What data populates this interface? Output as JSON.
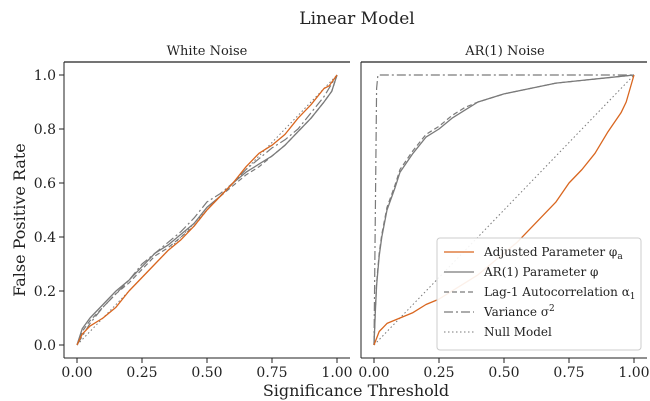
{
  "figure": {
    "title": "Linear Model",
    "xlabel": "Significance Threshold",
    "ylabel": "False Positive Rate"
  },
  "colors": {
    "adjusted": "#d9661f",
    "ar1": "#7a7a7a",
    "lag1": "#7a7a7a",
    "variance": "#7a7a7a",
    "null": "#7a7a7a"
  },
  "legend": {
    "placement": "lower-right of right panel",
    "entries": [
      {
        "key": "adjusted",
        "label": "Adjusted Parameter φ",
        "sub": "a",
        "style": "solid-orange"
      },
      {
        "key": "ar1",
        "label": "AR(1) Parameter φ",
        "sub": "",
        "style": "solid-gray"
      },
      {
        "key": "lag1",
        "label": "Lag-1 Autocorrelation α",
        "sub": "1",
        "style": "dashed"
      },
      {
        "key": "variance",
        "label": "Variance σ",
        "sup": "2",
        "style": "dash-dot"
      },
      {
        "key": "null",
        "label": "Null Model",
        "sub": "",
        "style": "dotted"
      }
    ]
  },
  "chart_data": [
    {
      "type": "line",
      "title": "White Noise",
      "xlim": [
        0,
        1
      ],
      "ylim": [
        0,
        1
      ],
      "xticks": [
        "0.00",
        "0.25",
        "0.50",
        "0.75",
        "1.00"
      ],
      "yticks": [
        "0.0",
        "0.2",
        "0.4",
        "0.6",
        "0.8",
        "1.0"
      ],
      "series": [
        {
          "key": "adjusted",
          "name": "Adjusted Parameter φa",
          "x": [
            0,
            0.02,
            0.05,
            0.1,
            0.15,
            0.2,
            0.25,
            0.3,
            0.35,
            0.4,
            0.45,
            0.5,
            0.55,
            0.6,
            0.65,
            0.7,
            0.75,
            0.8,
            0.85,
            0.9,
            0.95,
            0.97,
            1.0
          ],
          "y": [
            0,
            0.04,
            0.07,
            0.1,
            0.14,
            0.2,
            0.25,
            0.3,
            0.35,
            0.39,
            0.44,
            0.5,
            0.55,
            0.6,
            0.66,
            0.71,
            0.74,
            0.78,
            0.84,
            0.89,
            0.95,
            0.96,
            1.0
          ]
        },
        {
          "key": "ar1",
          "name": "AR(1) Parameter φ",
          "x": [
            0,
            0.02,
            0.05,
            0.1,
            0.15,
            0.2,
            0.25,
            0.3,
            0.35,
            0.4,
            0.45,
            0.5,
            0.55,
            0.6,
            0.65,
            0.7,
            0.75,
            0.8,
            0.85,
            0.9,
            0.95,
            0.98,
            1.0
          ],
          "y": [
            0,
            0.06,
            0.1,
            0.15,
            0.2,
            0.24,
            0.29,
            0.34,
            0.37,
            0.41,
            0.45,
            0.51,
            0.55,
            0.6,
            0.64,
            0.67,
            0.7,
            0.74,
            0.79,
            0.84,
            0.9,
            0.94,
            1.0
          ]
        },
        {
          "key": "lag1",
          "name": "Lag-1 Autocorrelation α1",
          "x": [
            0,
            0.02,
            0.05,
            0.1,
            0.15,
            0.2,
            0.25,
            0.3,
            0.35,
            0.4,
            0.45,
            0.5,
            0.55,
            0.6,
            0.65,
            0.7,
            0.75,
            0.8,
            0.85,
            0.9,
            0.95,
            0.98,
            1.0
          ],
          "y": [
            0,
            0.05,
            0.09,
            0.14,
            0.19,
            0.23,
            0.28,
            0.33,
            0.36,
            0.4,
            0.44,
            0.5,
            0.55,
            0.59,
            0.63,
            0.66,
            0.7,
            0.74,
            0.79,
            0.84,
            0.9,
            0.94,
            1.0
          ]
        },
        {
          "key": "variance",
          "name": "Variance σ2",
          "x": [
            0,
            0.05,
            0.1,
            0.15,
            0.2,
            0.25,
            0.3,
            0.35,
            0.4,
            0.45,
            0.5,
            0.55,
            0.6,
            0.65,
            0.7,
            0.75,
            0.8,
            0.85,
            0.9,
            0.95,
            1.0
          ],
          "y": [
            0,
            0.08,
            0.14,
            0.19,
            0.24,
            0.3,
            0.34,
            0.38,
            0.42,
            0.47,
            0.53,
            0.56,
            0.6,
            0.65,
            0.69,
            0.73,
            0.76,
            0.8,
            0.86,
            0.92,
            1.0
          ]
        },
        {
          "key": "null",
          "name": "Null Model",
          "x": [
            0,
            1
          ],
          "y": [
            0,
            1
          ]
        }
      ]
    },
    {
      "type": "line",
      "title": "AR(1) Noise",
      "xlim": [
        0,
        1
      ],
      "ylim": [
        0,
        1
      ],
      "xticks": [
        "0.00",
        "0.25",
        "0.50",
        "0.75",
        "1.00"
      ],
      "yticks": [],
      "series": [
        {
          "key": "adjusted",
          "name": "Adjusted Parameter φa",
          "x": [
            0,
            0.02,
            0.05,
            0.1,
            0.15,
            0.2,
            0.25,
            0.3,
            0.35,
            0.4,
            0.45,
            0.5,
            0.55,
            0.6,
            0.65,
            0.7,
            0.75,
            0.8,
            0.85,
            0.9,
            0.95,
            0.97,
            1.0
          ],
          "y": [
            0,
            0.05,
            0.08,
            0.1,
            0.12,
            0.15,
            0.17,
            0.2,
            0.23,
            0.26,
            0.3,
            0.34,
            0.38,
            0.43,
            0.48,
            0.53,
            0.6,
            0.65,
            0.71,
            0.79,
            0.86,
            0.9,
            1.0
          ]
        },
        {
          "key": "ar1",
          "name": "AR(1) Parameter φ",
          "x": [
            0,
            0.005,
            0.01,
            0.02,
            0.03,
            0.05,
            0.08,
            0.1,
            0.15,
            0.2,
            0.25,
            0.3,
            0.35,
            0.4,
            0.5,
            0.6,
            0.7,
            0.8,
            0.9,
            1.0
          ],
          "y": [
            0,
            0.12,
            0.22,
            0.33,
            0.4,
            0.5,
            0.58,
            0.64,
            0.71,
            0.77,
            0.8,
            0.84,
            0.87,
            0.9,
            0.93,
            0.95,
            0.97,
            0.98,
            0.99,
            1.0
          ]
        },
        {
          "key": "lag1",
          "name": "Lag-1 Autocorrelation α1",
          "x": [
            0,
            0.005,
            0.01,
            0.02,
            0.03,
            0.05,
            0.08,
            0.1,
            0.15,
            0.2,
            0.25,
            0.3,
            0.35,
            0.4,
            0.5,
            0.6,
            0.7,
            0.8,
            0.9,
            1.0
          ],
          "y": [
            0,
            0.13,
            0.23,
            0.34,
            0.41,
            0.51,
            0.59,
            0.65,
            0.72,
            0.78,
            0.81,
            0.85,
            0.88,
            0.9,
            0.93,
            0.95,
            0.97,
            0.98,
            0.99,
            1.0
          ]
        },
        {
          "key": "variance",
          "name": "Variance σ2",
          "x": [
            0,
            0.01,
            0.015,
            0.3,
            0.6,
            1.0
          ],
          "y": [
            0,
            0.95,
            1.0,
            1.0,
            1.0,
            1.0
          ]
        },
        {
          "key": "null",
          "name": "Null Model",
          "x": [
            0,
            1
          ],
          "y": [
            0,
            1
          ]
        }
      ]
    }
  ]
}
